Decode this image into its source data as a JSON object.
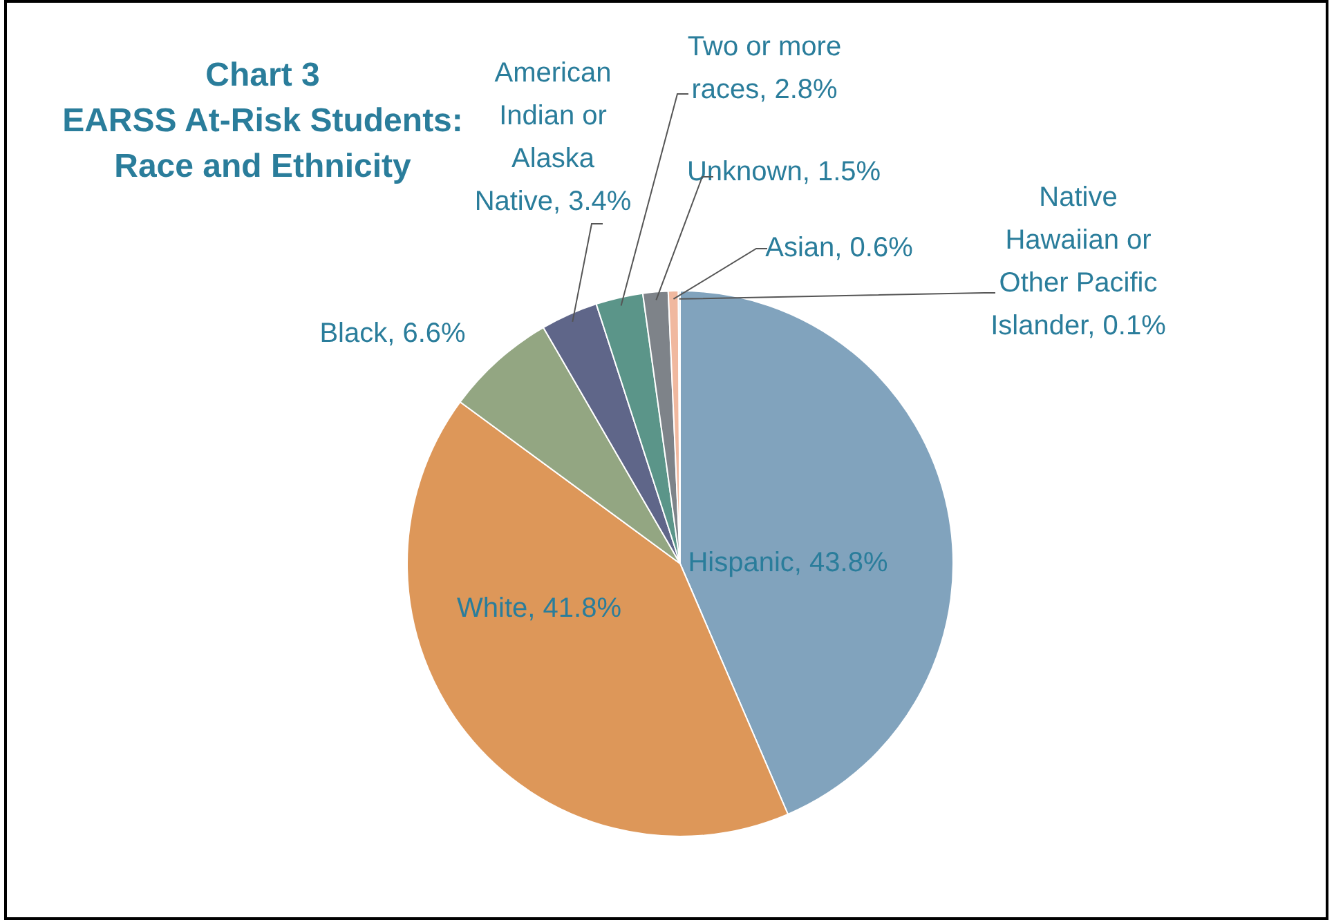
{
  "chart_data": {
    "type": "pie",
    "title": "Chart 3",
    "subtitle": "EARSS At-Risk Students: Race and Ethnicity",
    "categories": [
      "Hispanic",
      "White",
      "Black",
      "American Indian or Alaska Native",
      "Two or more races",
      "Unknown",
      "Asian",
      "Native Hawaiian or Other Pacific Islander"
    ],
    "values": [
      43.8,
      41.8,
      6.6,
      3.4,
      2.8,
      1.5,
      0.6,
      0.1
    ],
    "value_labels": [
      "43.8%",
      "41.8%",
      "6.6%",
      "3.4%",
      "2.8%",
      "1.5%",
      "0.6%",
      "0.1%"
    ],
    "colors": [
      "#81a3bd",
      "#dd9759",
      "#93a682",
      "#5f6689",
      "#5b9589",
      "#7e8389",
      "#f0b89f",
      "#a9c4d8"
    ],
    "legend": false
  }
}
